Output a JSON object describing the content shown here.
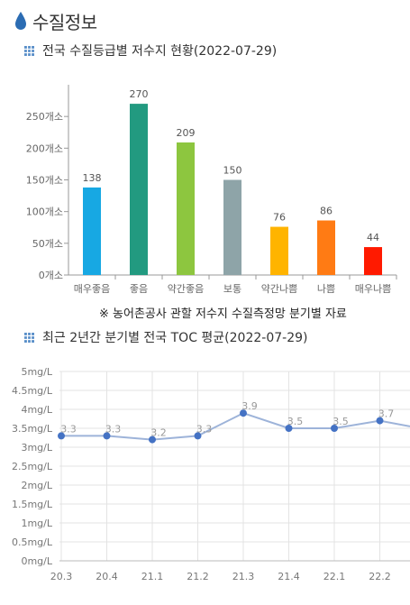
{
  "header": {
    "title": "수질정보",
    "icon": "water-drop-icon",
    "icon_color": "#2b6cb3"
  },
  "section1": {
    "title": "전국 수질등급별 저수지 현황(2022-07-29)",
    "marker_icon": "grid-bullet-icon"
  },
  "source_note": "※ 농어촌공사 관할 저수지 수질측정망 분기별 자료",
  "section2": {
    "title": "최근 2년간 분기별 전국 TOC 평균(2022-07-29)",
    "marker_icon": "grid-bullet-icon"
  },
  "chart_data": [
    {
      "type": "bar",
      "title": "전국 수질등급별 저수지 현황(2022-07-29)",
      "categories": [
        "매우좋음",
        "좋음",
        "약간좋음",
        "보통",
        "약간나쁨",
        "나쁨",
        "매우나쁨"
      ],
      "values": [
        138,
        270,
        209,
        150,
        76,
        86,
        44
      ],
      "colors": [
        "#17a8e3",
        "#229a80",
        "#8dc63f",
        "#8ea4a8",
        "#ffb400",
        "#ff7b14",
        "#ff1a00"
      ],
      "y_ticks": [
        "0개소",
        "50개소",
        "100개소",
        "150개소",
        "200개소",
        "250개소"
      ],
      "ylim": [
        0,
        300
      ],
      "data_labels": true,
      "grid": false
    },
    {
      "type": "line",
      "title": "최근 2년간 분기별 전국 TOC 평균(2022-07-29)",
      "categories": [
        "20.3",
        "20.4",
        "21.1",
        "21.2",
        "21.3",
        "21.4",
        "22.1",
        "22.2"
      ],
      "series": [
        {
          "values": [
            3.3,
            3.3,
            3.2,
            3.3,
            3.9,
            3.5,
            3.5,
            3.7
          ],
          "color": "#4472c4",
          "line_color": "#9db3d9"
        }
      ],
      "y_ticks": [
        "0mg/L",
        "0.5mg/L",
        "1mg/L",
        "1.5mg/L",
        "2mg/L",
        "2.5mg/L",
        "3mg/L",
        "3.5mg/L",
        "4mg/L",
        "4.5mg/L",
        "5mg/L"
      ],
      "ylim": [
        0,
        5
      ],
      "grid": true,
      "data_labels": true
    }
  ]
}
